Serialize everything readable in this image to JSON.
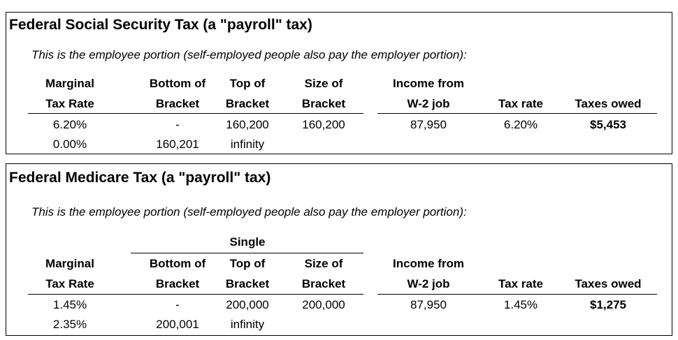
{
  "sections": [
    {
      "title": "Federal Social Security Tax (a \"payroll\" tax)",
      "note": "This is the employee portion (self-employed people also pay the employer portion):",
      "headers": [
        [
          "Marginal",
          "Tax Rate"
        ],
        [
          "Bottom of",
          "Bracket"
        ],
        [
          "Top of",
          "Bracket"
        ],
        [
          "Size of",
          "Bracket"
        ],
        [
          "Income from",
          "W-2 job"
        ],
        [
          "Tax rate"
        ],
        [
          "Taxes owed"
        ]
      ],
      "rows": [
        [
          "6.20%",
          "-",
          "160,200",
          "160,200",
          "87,950",
          "6.20%",
          "$5,453"
        ],
        [
          "0.00%",
          "160,201",
          "infinity"
        ]
      ]
    },
    {
      "title": "Federal Medicare Tax (a \"payroll\" tax)",
      "note": "This is the employee portion (self-employed people also pay the employer portion):",
      "group_label": "Single",
      "headers": [
        [
          "Marginal",
          "Tax Rate"
        ],
        [
          "Bottom of",
          "Bracket"
        ],
        [
          "Top of",
          "Bracket"
        ],
        [
          "Size of",
          "Bracket"
        ],
        [
          "Income from",
          "W-2 job"
        ],
        [
          "Tax rate"
        ],
        [
          "Taxes owed"
        ]
      ],
      "rows": [
        [
          "1.45%",
          "-",
          "200,000",
          "200,000",
          "87,950",
          "1.45%",
          "$1,275"
        ],
        [
          "2.35%",
          "200,001",
          "infinity"
        ]
      ]
    }
  ]
}
